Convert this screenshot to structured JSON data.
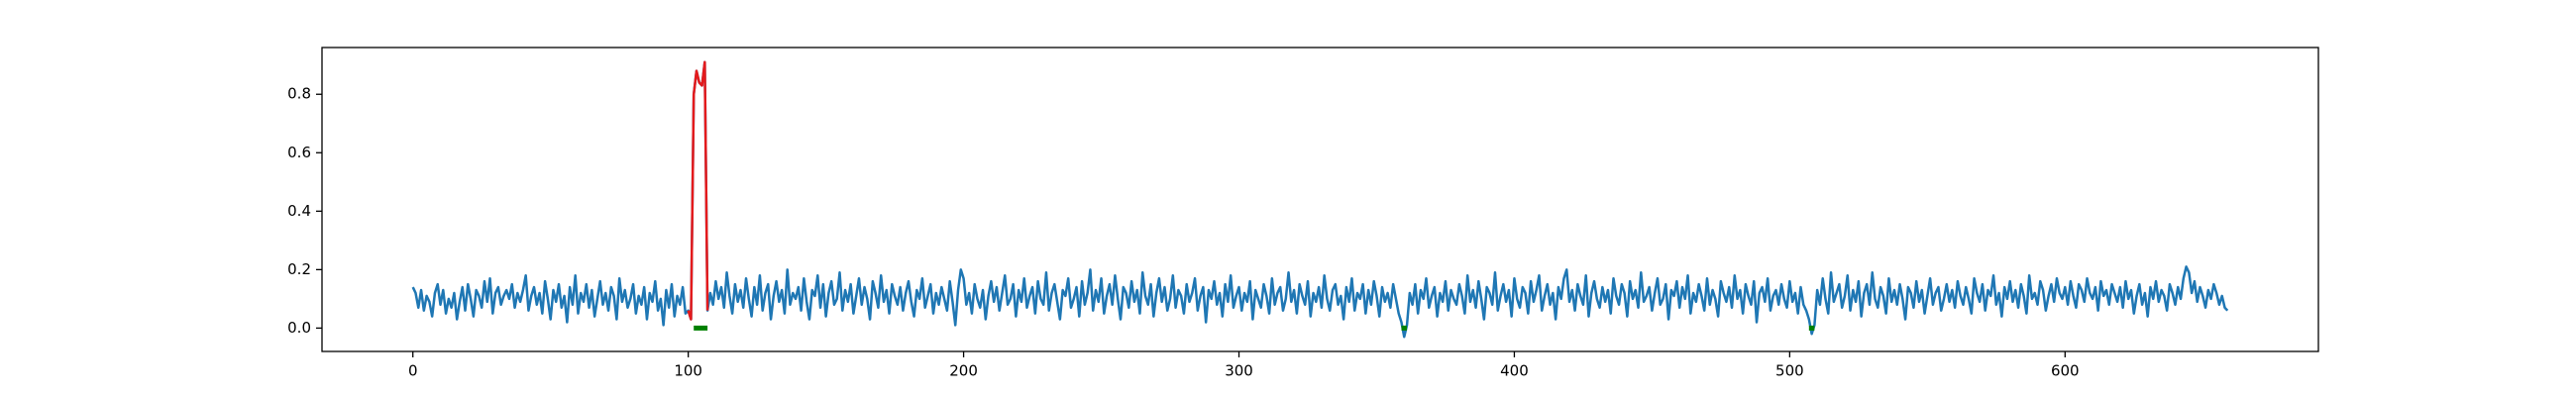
{
  "chart_data": {
    "type": "line",
    "xlim": [
      -33,
      692
    ],
    "xticks": [
      0,
      100,
      200,
      300,
      400,
      500,
      600
    ],
    "ylim": [
      -0.08,
      0.96
    ],
    "yticks": [
      {
        "value": 0,
        "label": "0.0"
      },
      0.2,
      0.4,
      0.6,
      0.8
    ],
    "series": [
      {
        "color": "#1f77b4",
        "values": [
          0.14,
          0.12,
          0.07,
          0.13,
          0.06,
          0.11,
          0.09,
          0.04,
          0.12,
          0.15,
          0.08,
          0.13,
          0.05,
          0.1,
          0.07,
          0.12,
          0.03,
          0.09,
          0.14,
          0.06,
          0.15,
          0.1,
          0.04,
          0.13,
          0.11,
          0.07,
          0.16,
          0.09,
          0.17,
          0.05,
          0.12,
          0.14,
          0.08,
          0.11,
          0.13,
          0.1,
          0.15,
          0.07,
          0.12,
          0.09,
          0.13,
          0.18,
          0.06,
          0.11,
          0.14,
          0.08,
          0.12,
          0.05,
          0.16,
          0.1,
          0.03,
          0.13,
          0.09,
          0.15,
          0.07,
          0.11,
          0.02,
          0.14,
          0.08,
          0.18,
          0.05,
          0.12,
          0.09,
          0.15,
          0.07,
          0.13,
          0.04,
          0.1,
          0.16,
          0.08,
          0.12,
          0.06,
          0.14,
          0.11,
          0.03,
          0.17,
          0.09,
          0.13,
          0.07,
          0.1,
          0.15,
          0.05,
          0.11,
          0.08,
          0.14,
          0.03,
          0.12,
          0.09,
          0.16,
          0.06,
          0.1,
          0.01,
          0.13,
          0.07,
          0.15,
          0.04,
          0.11,
          0.08,
          0.14,
          0.05,
          0.06,
          0.03,
          0.8,
          0.88,
          0.84,
          0.83,
          0.91,
          0.06,
          0.12,
          0.08,
          0.16,
          0.1,
          0.14,
          0.07,
          0.19,
          0.11,
          0.05,
          0.15,
          0.09,
          0.13,
          0.07,
          0.17,
          0.1,
          0.04,
          0.14,
          0.08,
          0.18,
          0.06,
          0.12,
          0.15,
          0.03,
          0.11,
          0.16,
          0.09,
          0.13,
          0.05,
          0.2,
          0.08,
          0.12,
          0.1,
          0.14,
          0.06,
          0.17,
          0.09,
          0.03,
          0.13,
          0.11,
          0.18,
          0.07,
          0.15,
          0.04,
          0.12,
          0.16,
          0.08,
          0.1,
          0.19,
          0.06,
          0.13,
          0.09,
          0.15,
          0.05,
          0.11,
          0.17,
          0.08,
          0.14,
          0.1,
          0.03,
          0.16,
          0.12,
          0.07,
          0.18,
          0.09,
          0.13,
          0.05,
          0.15,
          0.11,
          0.08,
          0.14,
          0.06,
          0.12,
          0.16,
          0.09,
          0.04,
          0.13,
          0.1,
          0.17,
          0.07,
          0.11,
          0.15,
          0.05,
          0.12,
          0.08,
          0.14,
          0.1,
          0.06,
          0.16,
          0.09,
          0.01,
          0.13,
          0.2,
          0.17,
          0.08,
          0.12,
          0.05,
          0.15,
          0.1,
          0.07,
          0.13,
          0.03,
          0.11,
          0.16,
          0.09,
          0.14,
          0.06,
          0.12,
          0.18,
          0.08,
          0.1,
          0.15,
          0.04,
          0.13,
          0.09,
          0.17,
          0.07,
          0.11,
          0.14,
          0.05,
          0.16,
          0.1,
          0.08,
          0.19,
          0.06,
          0.12,
          0.15,
          0.09,
          0.03,
          0.13,
          0.11,
          0.17,
          0.07,
          0.1,
          0.14,
          0.04,
          0.16,
          0.08,
          0.12,
          0.2,
          0.06,
          0.13,
          0.09,
          0.17,
          0.05,
          0.11,
          0.15,
          0.08,
          0.18,
          0.1,
          0.03,
          0.14,
          0.12,
          0.07,
          0.16,
          0.09,
          0.13,
          0.05,
          0.19,
          0.11,
          0.08,
          0.15,
          0.04,
          0.12,
          0.17,
          0.09,
          0.14,
          0.06,
          0.1,
          0.18,
          0.07,
          0.13,
          0.11,
          0.05,
          0.15,
          0.09,
          0.12,
          0.17,
          0.06,
          0.11,
          0.14,
          0.02,
          0.13,
          0.1,
          0.16,
          0.08,
          0.12,
          0.04,
          0.15,
          0.09,
          0.18,
          0.07,
          0.11,
          0.14,
          0.06,
          0.12,
          0.09,
          0.16,
          0.03,
          0.13,
          0.1,
          0.07,
          0.15,
          0.11,
          0.05,
          0.17,
          0.08,
          0.12,
          0.14,
          0.06,
          0.1,
          0.19,
          0.09,
          0.13,
          0.05,
          0.15,
          0.11,
          0.08,
          0.16,
          0.04,
          0.12,
          0.09,
          0.14,
          0.07,
          0.18,
          0.1,
          0.06,
          0.13,
          0.15,
          0.08,
          0.11,
          0.03,
          0.14,
          0.09,
          0.17,
          0.06,
          0.12,
          0.1,
          0.15,
          0.05,
          0.13,
          0.08,
          0.16,
          0.11,
          0.04,
          0.14,
          0.09,
          0.12,
          0.07,
          0.15,
          0.1,
          0.05,
          0.02,
          -0.03,
          0.01,
          0.12,
          0.08,
          0.15,
          0.05,
          0.13,
          0.1,
          0.17,
          0.07,
          0.11,
          0.14,
          0.04,
          0.12,
          0.09,
          0.16,
          0.06,
          0.13,
          0.1,
          0.08,
          0.15,
          0.11,
          0.05,
          0.18,
          0.09,
          0.13,
          0.07,
          0.16,
          0.1,
          0.03,
          0.14,
          0.12,
          0.08,
          0.19,
          0.06,
          0.11,
          0.15,
          0.09,
          0.13,
          0.04,
          0.17,
          0.1,
          0.07,
          0.14,
          0.12,
          0.05,
          0.16,
          0.09,
          0.13,
          0.18,
          0.06,
          0.11,
          0.15,
          0.08,
          0.12,
          0.03,
          0.14,
          0.1,
          0.17,
          0.2,
          0.09,
          0.13,
          0.06,
          0.15,
          0.11,
          0.08,
          0.18,
          0.04,
          0.12,
          0.16,
          0.1,
          0.07,
          0.14,
          0.09,
          0.13,
          0.05,
          0.17,
          0.11,
          0.08,
          0.15,
          0.12,
          0.04,
          0.16,
          0.1,
          0.13,
          0.07,
          0.19,
          0.09,
          0.11,
          0.14,
          0.06,
          0.12,
          0.17,
          0.08,
          0.1,
          0.15,
          0.03,
          0.13,
          0.11,
          0.16,
          0.07,
          0.14,
          0.1,
          0.18,
          0.05,
          0.12,
          0.09,
          0.15,
          0.11,
          0.06,
          0.17,
          0.08,
          0.13,
          0.1,
          0.04,
          0.16,
          0.12,
          0.09,
          0.14,
          0.07,
          0.18,
          0.1,
          0.13,
          0.05,
          0.15,
          0.11,
          0.08,
          0.16,
          0.02,
          0.12,
          0.14,
          0.09,
          0.17,
          0.06,
          0.11,
          0.13,
          0.08,
          0.15,
          0.1,
          0.07,
          0.16,
          0.09,
          0.12,
          0.05,
          0.14,
          0.08,
          0.06,
          0.03,
          -0.02,
          0.01,
          0.13,
          0.08,
          0.17,
          0.1,
          0.05,
          0.19,
          0.09,
          0.12,
          0.15,
          0.07,
          0.11,
          0.18,
          0.06,
          0.13,
          0.09,
          0.16,
          0.04,
          0.12,
          0.15,
          0.08,
          0.19,
          0.1,
          0.07,
          0.14,
          0.11,
          0.05,
          0.17,
          0.09,
          0.13,
          0.08,
          0.15,
          0.1,
          0.03,
          0.14,
          0.12,
          0.07,
          0.16,
          0.09,
          0.13,
          0.05,
          0.11,
          0.17,
          0.08,
          0.12,
          0.14,
          0.06,
          0.1,
          0.15,
          0.09,
          0.13,
          0.07,
          0.16,
          0.11,
          0.08,
          0.14,
          0.1,
          0.05,
          0.17,
          0.12,
          0.09,
          0.15,
          0.06,
          0.13,
          0.11,
          0.18,
          0.08,
          0.12,
          0.04,
          0.14,
          0.1,
          0.16,
          0.09,
          0.13,
          0.07,
          0.15,
          0.11,
          0.05,
          0.18,
          0.1,
          0.12,
          0.08,
          0.16,
          0.13,
          0.06,
          0.11,
          0.15,
          0.09,
          0.17,
          0.12,
          0.1,
          0.14,
          0.08,
          0.16,
          0.11,
          0.07,
          0.15,
          0.13,
          0.09,
          0.17,
          0.12,
          0.1,
          0.14,
          0.06,
          0.16,
          0.11,
          0.13,
          0.08,
          0.15,
          0.12,
          0.09,
          0.14,
          0.07,
          0.16,
          0.1,
          0.13,
          0.05,
          0.11,
          0.15,
          0.08,
          0.12,
          0.04,
          0.14,
          0.1,
          0.16,
          0.09,
          0.13,
          0.11,
          0.06,
          0.15,
          0.12,
          0.08,
          0.14,
          0.1,
          0.17,
          0.21,
          0.19,
          0.12,
          0.16,
          0.09,
          0.14,
          0.11,
          0.07,
          0.13,
          0.1,
          0.15,
          0.12,
          0.08,
          0.11,
          0.07,
          0.06
        ]
      },
      {
        "color": "#e41a1c",
        "x": [
          100,
          101,
          102,
          103,
          104,
          105,
          106,
          107
        ],
        "values": [
          0.06,
          0.03,
          0.8,
          0.88,
          0.84,
          0.83,
          0.91,
          0.06
        ]
      },
      {
        "color": "#008000",
        "x": [
          102,
          103,
          104,
          105,
          106,
          107,
          108,
          359,
          360,
          361,
          362,
          507,
          508,
          509
        ],
        "values": [
          0,
          0,
          0,
          0,
          0,
          0,
          null,
          0,
          0,
          0,
          null,
          0,
          0,
          0
        ]
      }
    ]
  }
}
